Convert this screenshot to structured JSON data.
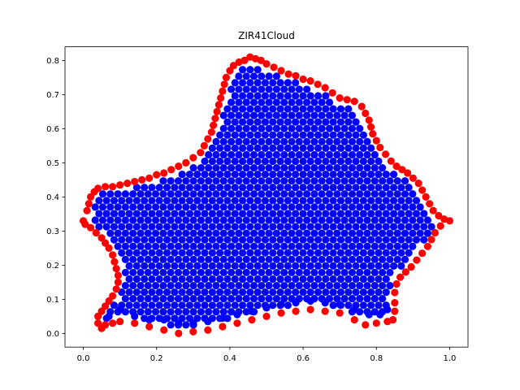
{
  "chart_data": {
    "type": "scatter",
    "title": "ZIR41Cloud",
    "xlabel": "",
    "ylabel": "",
    "xlim": [
      -0.05,
      1.05
    ],
    "ylim": [
      -0.04,
      0.84
    ],
    "grid": false,
    "x_ticks": [
      "0.0",
      "0.2",
      "0.4",
      "0.6",
      "0.8",
      "1.0"
    ],
    "y_ticks": [
      "0.0",
      "0.1",
      "0.2",
      "0.3",
      "0.4",
      "0.5",
      "0.6",
      "0.7",
      "0.8"
    ],
    "colors": {
      "boundary": "#ff0000",
      "interior": "#0000ff"
    },
    "boundary_points": [
      [
        0.0,
        0.33
      ],
      [
        0.01,
        0.36
      ],
      [
        0.015,
        0.38
      ],
      [
        0.02,
        0.4
      ],
      [
        0.03,
        0.415
      ],
      [
        0.04,
        0.425
      ],
      [
        0.06,
        0.43
      ],
      [
        0.08,
        0.43
      ],
      [
        0.1,
        0.435
      ],
      [
        0.12,
        0.44
      ],
      [
        0.14,
        0.445
      ],
      [
        0.16,
        0.45
      ],
      [
        0.18,
        0.455
      ],
      [
        0.2,
        0.465
      ],
      [
        0.22,
        0.47
      ],
      [
        0.24,
        0.48
      ],
      [
        0.26,
        0.49
      ],
      [
        0.28,
        0.5
      ],
      [
        0.3,
        0.515
      ],
      [
        0.32,
        0.53
      ],
      [
        0.33,
        0.55
      ],
      [
        0.34,
        0.57
      ],
      [
        0.35,
        0.59
      ],
      [
        0.355,
        0.61
      ],
      [
        0.36,
        0.63
      ],
      [
        0.365,
        0.65
      ],
      [
        0.37,
        0.67
      ],
      [
        0.375,
        0.69
      ],
      [
        0.38,
        0.71
      ],
      [
        0.385,
        0.73
      ],
      [
        0.39,
        0.75
      ],
      [
        0.4,
        0.77
      ],
      [
        0.41,
        0.785
      ],
      [
        0.425,
        0.795
      ],
      [
        0.44,
        0.8
      ],
      [
        0.455,
        0.81
      ],
      [
        0.47,
        0.805
      ],
      [
        0.485,
        0.8
      ],
      [
        0.5,
        0.79
      ],
      [
        0.52,
        0.78
      ],
      [
        0.54,
        0.77
      ],
      [
        0.56,
        0.76
      ],
      [
        0.58,
        0.755
      ],
      [
        0.6,
        0.745
      ],
      [
        0.62,
        0.74
      ],
      [
        0.64,
        0.73
      ],
      [
        0.66,
        0.72
      ],
      [
        0.68,
        0.705
      ],
      [
        0.7,
        0.69
      ],
      [
        0.72,
        0.685
      ],
      [
        0.74,
        0.68
      ],
      [
        0.76,
        0.665
      ],
      [
        0.77,
        0.645
      ],
      [
        0.78,
        0.625
      ],
      [
        0.785,
        0.605
      ],
      [
        0.79,
        0.585
      ],
      [
        0.8,
        0.565
      ],
      [
        0.81,
        0.545
      ],
      [
        0.825,
        0.525
      ],
      [
        0.84,
        0.505
      ],
      [
        0.855,
        0.49
      ],
      [
        0.87,
        0.48
      ],
      [
        0.885,
        0.47
      ],
      [
        0.9,
        0.455
      ],
      [
        0.915,
        0.44
      ],
      [
        0.925,
        0.42
      ],
      [
        0.935,
        0.4
      ],
      [
        0.945,
        0.38
      ],
      [
        0.955,
        0.36
      ],
      [
        0.97,
        0.345
      ],
      [
        0.985,
        0.335
      ],
      [
        1.0,
        0.33
      ],
      [
        0.975,
        0.315
      ],
      [
        0.96,
        0.295
      ],
      [
        0.95,
        0.275
      ],
      [
        0.94,
        0.255
      ],
      [
        0.925,
        0.235
      ],
      [
        0.91,
        0.215
      ],
      [
        0.895,
        0.195
      ],
      [
        0.88,
        0.18
      ],
      [
        0.865,
        0.165
      ],
      [
        0.855,
        0.145
      ],
      [
        0.85,
        0.12
      ],
      [
        0.85,
        0.09
      ],
      [
        0.85,
        0.065
      ],
      [
        0.845,
        0.04
      ],
      [
        0.83,
        0.035
      ],
      [
        0.8,
        0.03
      ],
      [
        0.77,
        0.025
      ],
      [
        0.74,
        0.04
      ],
      [
        0.7,
        0.06
      ],
      [
        0.66,
        0.065
      ],
      [
        0.62,
        0.07
      ],
      [
        0.58,
        0.065
      ],
      [
        0.54,
        0.06
      ],
      [
        0.5,
        0.05
      ],
      [
        0.46,
        0.04
      ],
      [
        0.42,
        0.03
      ],
      [
        0.38,
        0.02
      ],
      [
        0.34,
        0.01
      ],
      [
        0.3,
        0.005
      ],
      [
        0.26,
        0.0
      ],
      [
        0.22,
        0.01
      ],
      [
        0.18,
        0.02
      ],
      [
        0.14,
        0.03
      ],
      [
        0.1,
        0.035
      ],
      [
        0.08,
        0.03
      ],
      [
        0.06,
        0.025
      ],
      [
        0.05,
        0.015
      ],
      [
        0.04,
        0.03
      ],
      [
        0.04,
        0.05
      ],
      [
        0.05,
        0.065
      ],
      [
        0.06,
        0.08
      ],
      [
        0.07,
        0.095
      ],
      [
        0.08,
        0.11
      ],
      [
        0.09,
        0.13
      ],
      [
        0.095,
        0.15
      ],
      [
        0.095,
        0.17
      ],
      [
        0.09,
        0.19
      ],
      [
        0.085,
        0.21
      ],
      [
        0.08,
        0.23
      ],
      [
        0.07,
        0.25
      ],
      [
        0.06,
        0.265
      ],
      [
        0.05,
        0.28
      ],
      [
        0.035,
        0.295
      ],
      [
        0.02,
        0.31
      ],
      [
        0.005,
        0.32
      ]
    ],
    "interior_points": [
      [
        0.07,
        0.05
      ],
      [
        0.1,
        0.07
      ],
      [
        0.14,
        0.05
      ],
      [
        0.18,
        0.04
      ],
      [
        0.22,
        0.04
      ],
      [
        0.26,
        0.03
      ],
      [
        0.3,
        0.03
      ],
      [
        0.34,
        0.035
      ],
      [
        0.38,
        0.045
      ],
      [
        0.42,
        0.055
      ],
      [
        0.46,
        0.065
      ],
      [
        0.5,
        0.075
      ],
      [
        0.54,
        0.085
      ],
      [
        0.58,
        0.09
      ],
      [
        0.62,
        0.095
      ],
      [
        0.66,
        0.09
      ],
      [
        0.7,
        0.085
      ],
      [
        0.74,
        0.07
      ],
      [
        0.78,
        0.055
      ],
      [
        0.81,
        0.055
      ],
      [
        0.83,
        0.07
      ]
    ]
  }
}
